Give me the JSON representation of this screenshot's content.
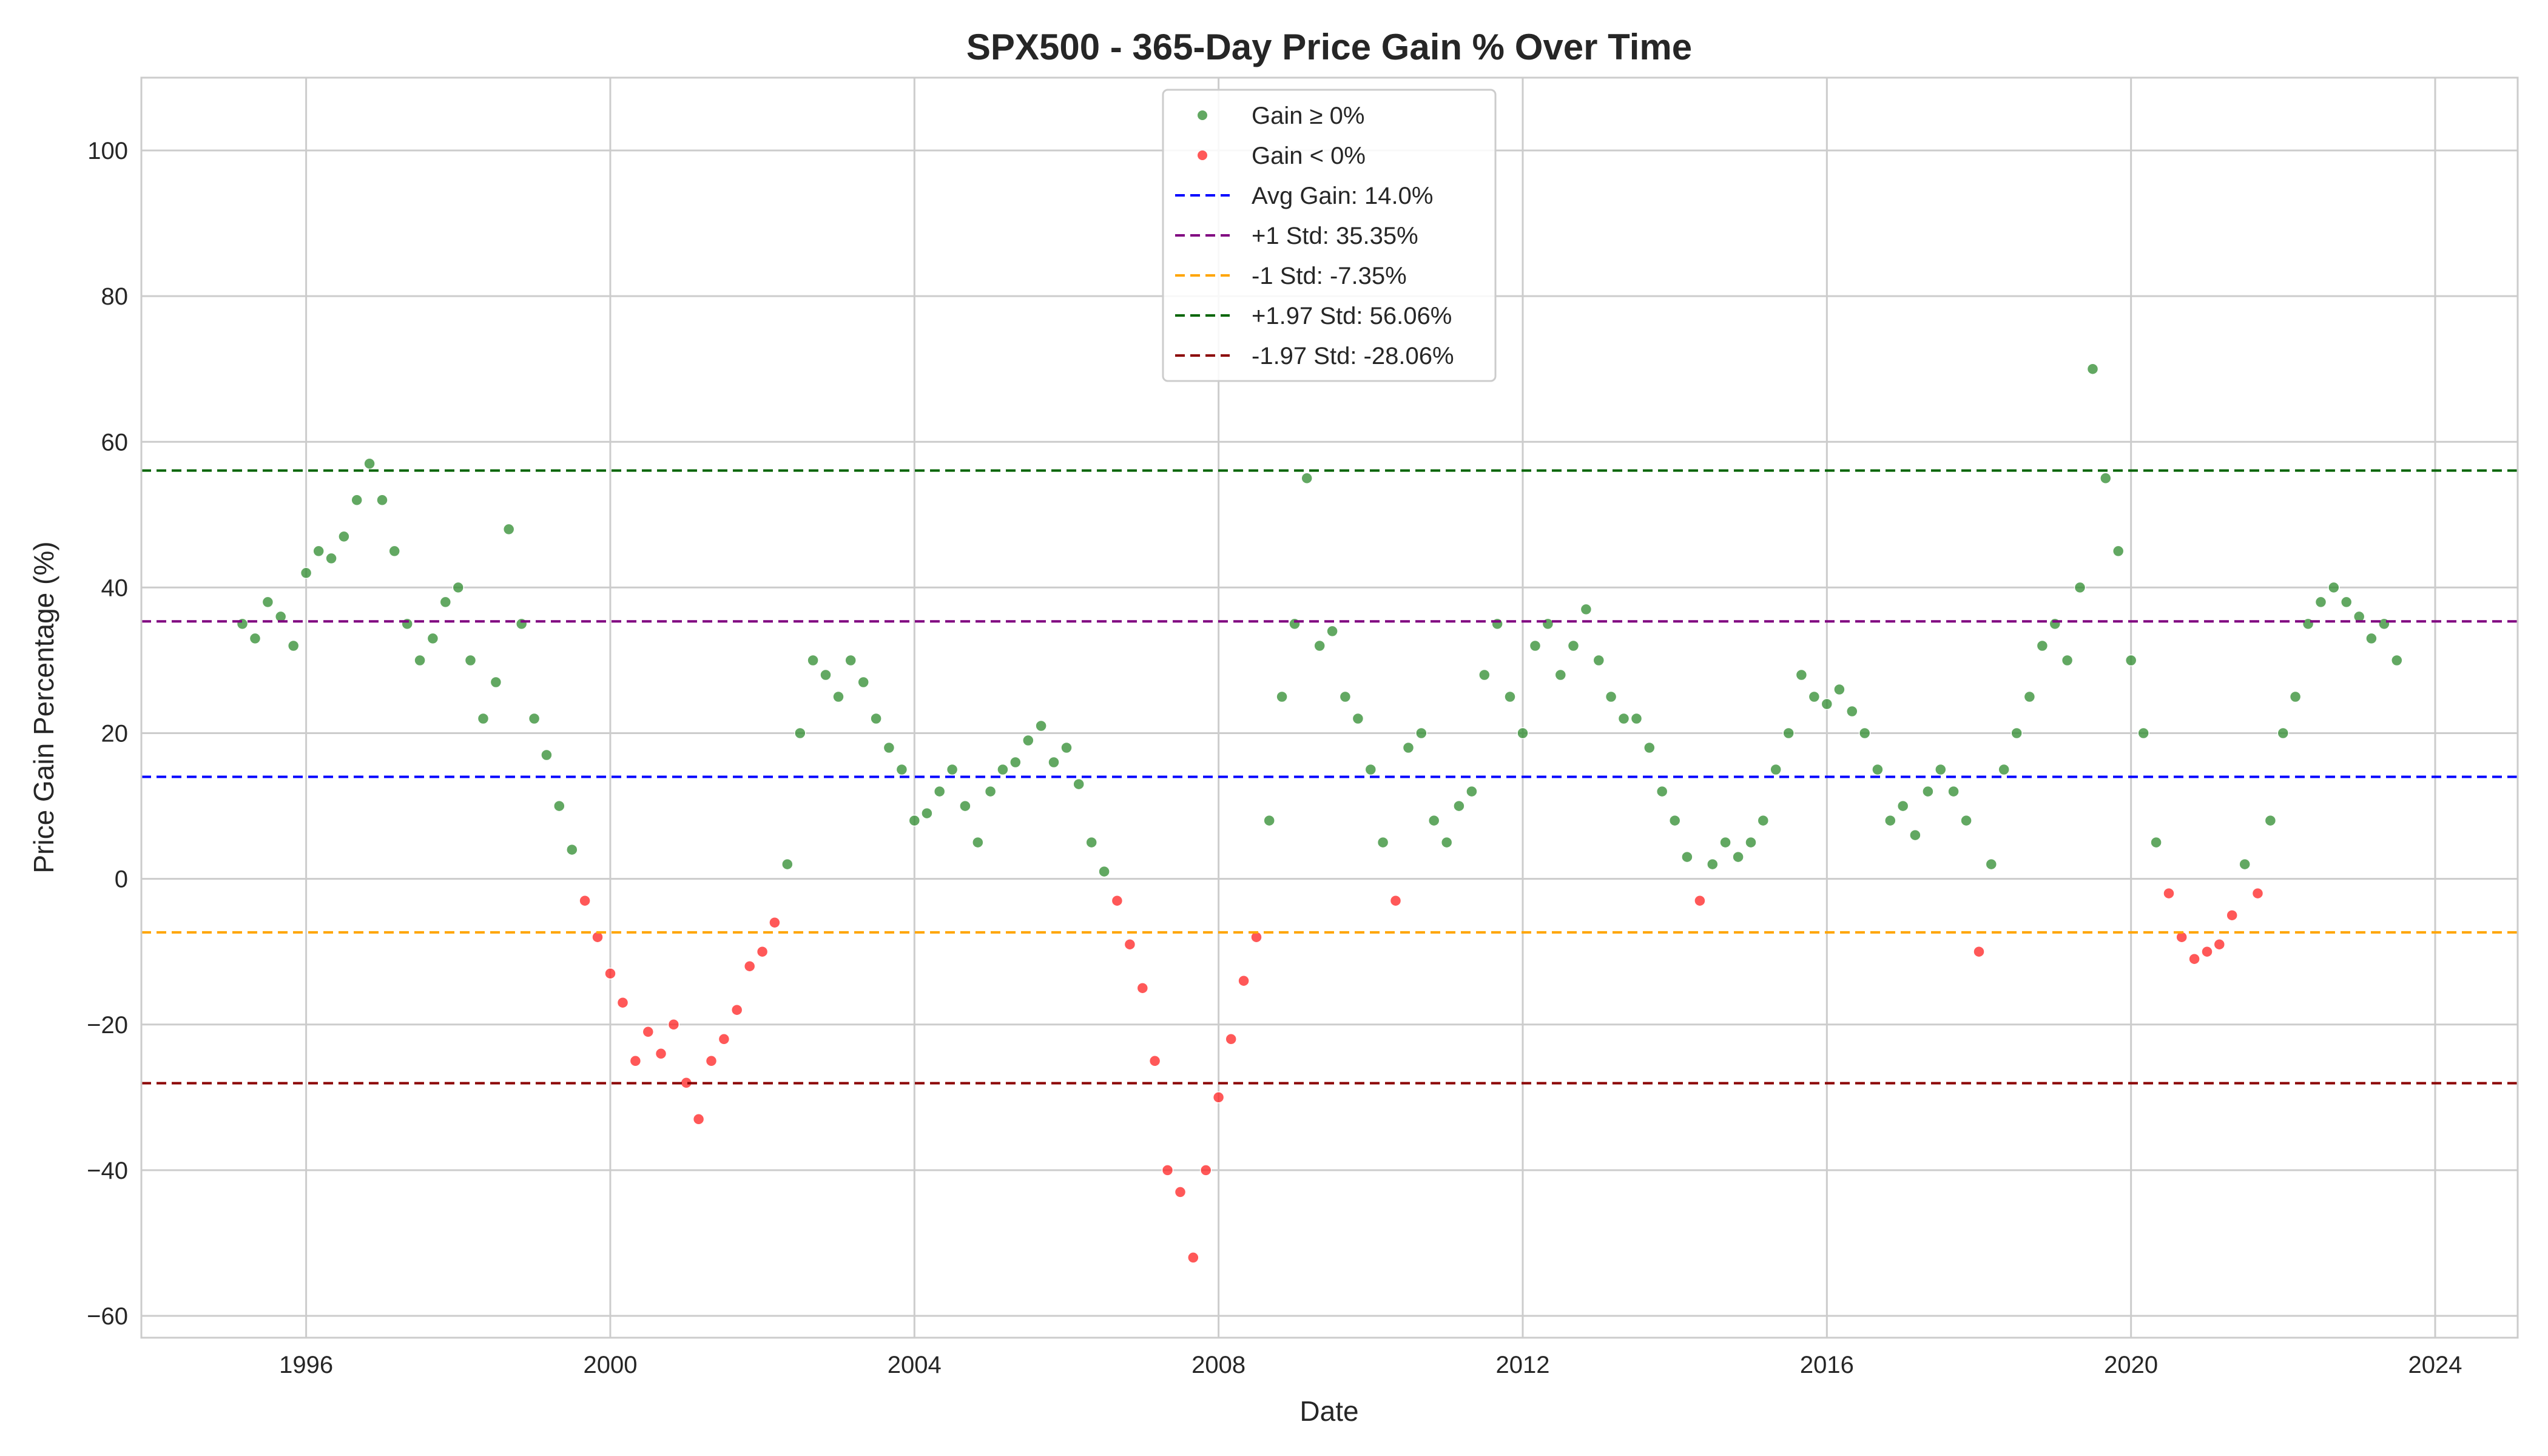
{
  "chart_data": {
    "type": "scatter",
    "title": "SPX500 - 365-Day Price Gain % Over Time",
    "xlabel": "Date",
    "ylabel": "Price Gain Percentage (%)",
    "xlim": [
      "1993-11-01",
      "2025-02-01"
    ],
    "ylim": [
      -63,
      110
    ],
    "x_ticks": [
      "1996",
      "2000",
      "2004",
      "2008",
      "2012",
      "2016",
      "2020",
      "2024"
    ],
    "y_ticks": [
      -60,
      -40,
      -20,
      0,
      20,
      40,
      60,
      80,
      100
    ],
    "grid": true,
    "legend_position": "top-center",
    "series": [
      {
        "name": "Gain ≥ 0%",
        "color": "#2e8b2e"
      },
      {
        "name": "Gain < 0%",
        "color": "#ff2020"
      }
    ],
    "reference_lines": [
      {
        "label": "Avg Gain: 14.0%",
        "y": 14.0,
        "color": "#0000ff"
      },
      {
        "label": "+1 Std: 35.35%",
        "y": 35.35,
        "color": "#800080"
      },
      {
        "label": "-1 Std: -7.35%",
        "y": -7.35,
        "color": "#ffa500"
      },
      {
        "label": "+1.97 Std: 56.06%",
        "y": 56.06,
        "color": "#006400"
      },
      {
        "label": "-1.97 Std: -28.06%",
        "y": -28.06,
        "color": "#8b0000"
      }
    ],
    "points": [
      [
        "1995-03-01",
        35
      ],
      [
        "1995-05-01",
        33
      ],
      [
        "1995-07-01",
        38
      ],
      [
        "1995-09-01",
        36
      ],
      [
        "1995-11-01",
        32
      ],
      [
        "1996-01-01",
        42
      ],
      [
        "1996-03-01",
        45
      ],
      [
        "1996-05-01",
        44
      ],
      [
        "1996-07-01",
        47
      ],
      [
        "1996-09-01",
        52
      ],
      [
        "1996-11-01",
        57
      ],
      [
        "1997-01-01",
        52
      ],
      [
        "1997-03-01",
        45
      ],
      [
        "1997-05-01",
        35
      ],
      [
        "1997-07-01",
        30
      ],
      [
        "1997-09-01",
        33
      ],
      [
        "1997-11-01",
        38
      ],
      [
        "1998-01-01",
        40
      ],
      [
        "1998-03-01",
        30
      ],
      [
        "1998-05-01",
        22
      ],
      [
        "1998-07-01",
        27
      ],
      [
        "1998-09-01",
        48
      ],
      [
        "1998-11-01",
        35
      ],
      [
        "1999-01-01",
        22
      ],
      [
        "1999-03-01",
        17
      ],
      [
        "1999-05-01",
        10
      ],
      [
        "1999-07-01",
        4
      ],
      [
        "1999-09-01",
        -3
      ],
      [
        "1999-11-01",
        -8
      ],
      [
        "2000-01-01",
        -13
      ],
      [
        "2000-03-01",
        -17
      ],
      [
        "2000-05-01",
        -25
      ],
      [
        "2000-07-01",
        -21
      ],
      [
        "2000-09-01",
        -24
      ],
      [
        "2000-11-01",
        -20
      ],
      [
        "2001-01-01",
        -28
      ],
      [
        "2001-03-01",
        -33
      ],
      [
        "2001-05-01",
        -25
      ],
      [
        "2001-07-01",
        -22
      ],
      [
        "2001-09-01",
        -18
      ],
      [
        "2001-11-01",
        -12
      ],
      [
        "2002-01-01",
        -10
      ],
      [
        "2002-03-01",
        -6
      ],
      [
        "2002-05-01",
        2
      ],
      [
        "2002-07-01",
        20
      ],
      [
        "2002-09-01",
        30
      ],
      [
        "2002-11-01",
        28
      ],
      [
        "2003-01-01",
        25
      ],
      [
        "2003-03-01",
        30
      ],
      [
        "2003-05-01",
        27
      ],
      [
        "2003-07-01",
        22
      ],
      [
        "2003-09-01",
        18
      ],
      [
        "2003-11-01",
        15
      ],
      [
        "2004-01-01",
        8
      ],
      [
        "2004-03-01",
        9
      ],
      [
        "2004-05-01",
        12
      ],
      [
        "2004-07-01",
        15
      ],
      [
        "2004-09-01",
        10
      ],
      [
        "2004-11-01",
        5
      ],
      [
        "2005-01-01",
        12
      ],
      [
        "2005-03-01",
        15
      ],
      [
        "2005-05-01",
        16
      ],
      [
        "2005-07-01",
        19
      ],
      [
        "2005-09-01",
        21
      ],
      [
        "2005-11-01",
        16
      ],
      [
        "2006-01-01",
        18
      ],
      [
        "2006-03-01",
        13
      ],
      [
        "2006-05-01",
        5
      ],
      [
        "2006-07-01",
        1
      ],
      [
        "2006-09-01",
        -3
      ],
      [
        "2006-11-01",
        -9
      ],
      [
        "2007-01-01",
        -15
      ],
      [
        "2007-03-01",
        -25
      ],
      [
        "2007-05-01",
        -40
      ],
      [
        "2007-07-01",
        -43
      ],
      [
        "2007-09-01",
        -52
      ],
      [
        "2007-11-01",
        -40
      ],
      [
        "2008-01-01",
        -30
      ],
      [
        "2008-03-01",
        -22
      ],
      [
        "2008-05-01",
        -14
      ],
      [
        "2008-07-01",
        -8
      ],
      [
        "2008-09-01",
        8
      ],
      [
        "2008-11-01",
        25
      ],
      [
        "2009-01-01",
        35
      ],
      [
        "2009-03-01",
        55
      ],
      [
        "2009-05-01",
        32
      ],
      [
        "2009-07-01",
        34
      ],
      [
        "2009-09-01",
        25
      ],
      [
        "2009-11-01",
        22
      ],
      [
        "2010-01-01",
        15
      ],
      [
        "2010-03-01",
        5
      ],
      [
        "2010-05-01",
        -3
      ],
      [
        "2010-07-01",
        18
      ],
      [
        "2010-09-01",
        20
      ],
      [
        "2010-11-01",
        8
      ],
      [
        "2011-01-01",
        5
      ],
      [
        "2011-03-01",
        10
      ],
      [
        "2011-05-01",
        12
      ],
      [
        "2011-07-01",
        28
      ],
      [
        "2011-09-01",
        35
      ],
      [
        "2011-11-01",
        25
      ],
      [
        "2012-01-01",
        20
      ],
      [
        "2012-03-01",
        32
      ],
      [
        "2012-05-01",
        35
      ],
      [
        "2012-07-01",
        28
      ],
      [
        "2012-09-01",
        32
      ],
      [
        "2012-11-01",
        37
      ],
      [
        "2013-01-01",
        30
      ],
      [
        "2013-03-01",
        25
      ],
      [
        "2013-05-01",
        22
      ],
      [
        "2013-07-01",
        22
      ],
      [
        "2013-09-01",
        18
      ],
      [
        "2013-11-01",
        12
      ],
      [
        "2014-01-01",
        8
      ],
      [
        "2014-03-01",
        3
      ],
      [
        "2014-05-01",
        -3
      ],
      [
        "2014-07-01",
        2
      ],
      [
        "2014-09-01",
        5
      ],
      [
        "2014-11-01",
        3
      ],
      [
        "2015-01-01",
        5
      ],
      [
        "2015-03-01",
        8
      ],
      [
        "2015-05-01",
        15
      ],
      [
        "2015-07-01",
        20
      ],
      [
        "2015-09-01",
        28
      ],
      [
        "2015-11-01",
        25
      ],
      [
        "2016-01-01",
        24
      ],
      [
        "2016-03-01",
        26
      ],
      [
        "2016-05-01",
        23
      ],
      [
        "2016-07-01",
        20
      ],
      [
        "2016-09-01",
        15
      ],
      [
        "2016-11-01",
        8
      ],
      [
        "2017-01-01",
        10
      ],
      [
        "2017-03-01",
        6
      ],
      [
        "2017-05-01",
        12
      ],
      [
        "2017-07-01",
        15
      ],
      [
        "2017-09-01",
        12
      ],
      [
        "2017-11-01",
        8
      ],
      [
        "2018-01-01",
        -10
      ],
      [
        "2018-03-01",
        2
      ],
      [
        "2018-05-01",
        15
      ],
      [
        "2018-07-01",
        20
      ],
      [
        "2018-09-01",
        25
      ],
      [
        "2018-11-01",
        32
      ],
      [
        "2019-01-01",
        35
      ],
      [
        "2019-03-01",
        30
      ],
      [
        "2019-05-01",
        40
      ],
      [
        "2019-07-01",
        70
      ],
      [
        "2019-09-01",
        55
      ],
      [
        "2019-11-01",
        45
      ],
      [
        "2020-01-01",
        30
      ],
      [
        "2020-03-01",
        20
      ],
      [
        "2020-05-01",
        5
      ],
      [
        "2020-07-01",
        -2
      ],
      [
        "2020-09-01",
        -8
      ],
      [
        "2020-11-01",
        -11
      ],
      [
        "2021-01-01",
        -10
      ],
      [
        "2021-03-01",
        -9
      ],
      [
        "2021-05-01",
        -5
      ],
      [
        "2021-07-01",
        2
      ],
      [
        "2021-09-01",
        -2
      ],
      [
        "2021-11-01",
        8
      ],
      [
        "2022-01-01",
        20
      ],
      [
        "2022-03-01",
        25
      ],
      [
        "2022-05-01",
        35
      ],
      [
        "2022-07-01",
        38
      ],
      [
        "2022-09-01",
        40
      ],
      [
        "2022-11-01",
        38
      ],
      [
        "2023-01-01",
        36
      ],
      [
        "2023-03-01",
        33
      ],
      [
        "2023-05-01",
        35
      ],
      [
        "2023-07-01",
        30
      ]
    ]
  }
}
